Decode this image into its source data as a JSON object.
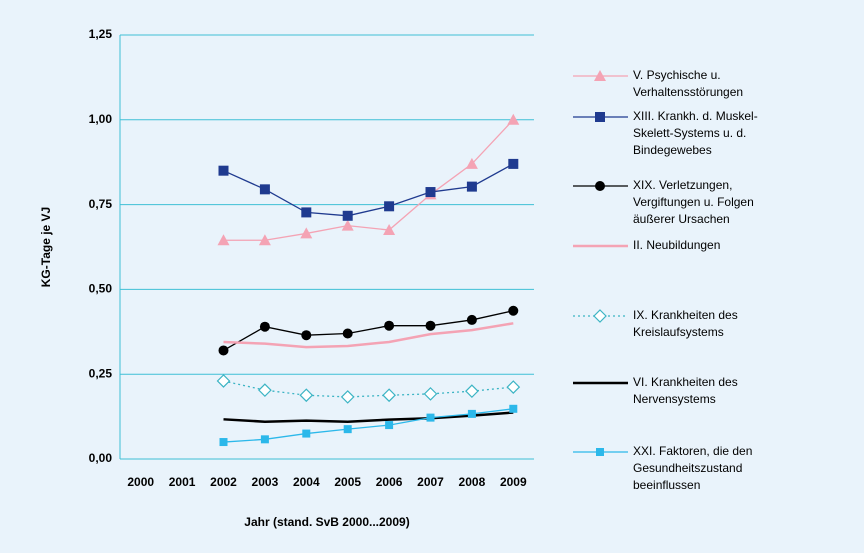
{
  "chart_data": {
    "type": "line",
    "y_label": "KG-Tage je VJ",
    "x_label": "Jahr (stand. SvB 2000...2009)",
    "categories": [
      "2000",
      "2001",
      "2002",
      "2003",
      "2004",
      "2005",
      "2006",
      "2007",
      "2008",
      "2009"
    ],
    "ylim": [
      0,
      1.25
    ],
    "yticks": [
      {
        "value": 0,
        "label": "0,00"
      },
      {
        "value": 0.25,
        "label": "0,25"
      },
      {
        "value": 0.5,
        "label": "0,50"
      },
      {
        "value": 0.75,
        "label": "0,75"
      },
      {
        "value": 1,
        "label": "1,00"
      },
      {
        "value": 1.25,
        "label": "1,25"
      }
    ],
    "grid": true,
    "legend": "right",
    "series": [
      {
        "name": "V. Psychische u.\nVerhaltensstörungen",
        "color": "#f4a3b4",
        "marker": "triangle",
        "line_style": "solid",
        "values": [
          null,
          null,
          0.645,
          0.645,
          0.665,
          0.688,
          0.675,
          0.78,
          0.87,
          1.0
        ]
      },
      {
        "name": "XIII. Krankh. d. Muskel-\nSkelett-Systems u. d.\nBindegewebes",
        "color": "#1f3a8f",
        "marker": "square",
        "line_style": "solid",
        "values": [
          null,
          null,
          0.85,
          0.795,
          0.727,
          0.717,
          0.745,
          0.787,
          0.803,
          0.87
        ]
      },
      {
        "name": "XIX. Verletzungen,\nVergiftungen u. Folgen\näußerer Ursachen",
        "color": "#000000",
        "marker": "circle",
        "line_style": "solid",
        "values": [
          null,
          null,
          0.32,
          0.39,
          0.365,
          0.37,
          0.393,
          0.393,
          0.41,
          0.437
        ]
      },
      {
        "name": "II. Neubildungen",
        "color": "#f4a3b4",
        "marker": "none",
        "line_style": "thick",
        "values": [
          null,
          null,
          0.345,
          0.34,
          0.33,
          0.333,
          0.345,
          0.368,
          0.38,
          0.4
        ]
      },
      {
        "name": "IX. Krankheiten des\nKreislaufsystems",
        "color": "#3cb4c4",
        "marker": "diamond-open",
        "line_style": "dotted",
        "values": [
          null,
          null,
          0.23,
          0.203,
          0.188,
          0.183,
          0.188,
          0.192,
          0.2,
          0.212
        ]
      },
      {
        "name": "VI. Krankheiten des\nNervensystems",
        "color": "#000000",
        "marker": "none",
        "line_style": "thick",
        "values": [
          null,
          null,
          0.117,
          0.11,
          0.113,
          0.11,
          0.116,
          0.12,
          0.128,
          0.137
        ]
      },
      {
        "name": "XXI. Faktoren, die den\nGesundheitszustand\nbeeinflussen",
        "color": "#2cb8ea",
        "marker": "square-small",
        "line_style": "solid",
        "values": [
          null,
          null,
          0.05,
          0.058,
          0.075,
          0.088,
          0.1,
          0.122,
          0.133,
          0.148
        ]
      }
    ]
  }
}
